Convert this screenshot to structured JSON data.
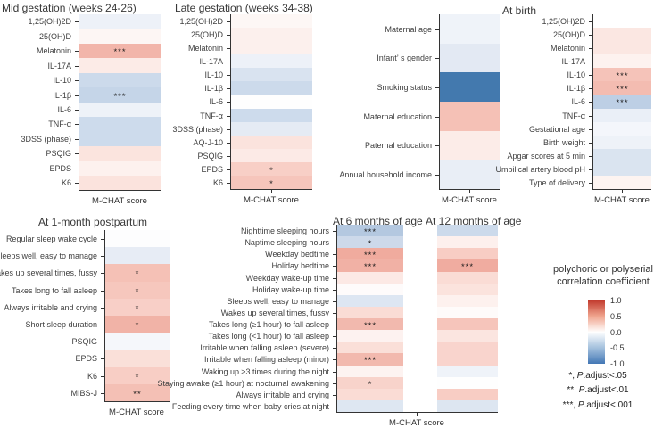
{
  "figure": {
    "xlabel": "M-CHAT score"
  },
  "chart_data": [
    {
      "id": "mid-gestation",
      "type": "heatmap",
      "title": "Mid gestation (weeks 24-26)",
      "xlabel": "M-CHAT score",
      "x_categories": [
        "M-CHAT score"
      ],
      "rows": [
        {
          "label": "1,25(OH)2D",
          "value": -0.06,
          "sig": "",
          "color": "#edf1f8"
        },
        {
          "label": "25(OH)D",
          "value": 0.03,
          "sig": "",
          "color": "#fdf6f4"
        },
        {
          "label": "Melatonin",
          "value": 0.38,
          "sig": "***",
          "color": "#f2b5aa"
        },
        {
          "label": "IL-17A",
          "value": 0.1,
          "sig": "",
          "color": "#fcebe7"
        },
        {
          "label": "IL-10",
          "value": -0.22,
          "sig": "",
          "color": "#ccdaeb"
        },
        {
          "label": "IL-1β",
          "value": -0.27,
          "sig": "***",
          "color": "#c5d5e8"
        },
        {
          "label": "IL-6",
          "value": -0.06,
          "sig": "",
          "color": "#eef2f8"
        },
        {
          "label": "TNF-α",
          "value": -0.22,
          "sig": "",
          "color": "#cddbec"
        },
        {
          "label": "3DSS (phase)",
          "value": -0.22,
          "sig": "",
          "color": "#cddbec"
        },
        {
          "label": "PSQIG",
          "value": 0.13,
          "sig": "",
          "color": "#fbe4de"
        },
        {
          "label": "EPDS",
          "value": 0.07,
          "sig": "",
          "color": "#fdf1ee"
        },
        {
          "label": "K6",
          "value": 0.13,
          "sig": "",
          "color": "#fbe3dd"
        }
      ]
    },
    {
      "id": "late-gestation",
      "type": "heatmap",
      "title": "Late gestation (weeks 34-38)",
      "xlabel": "M-CHAT score",
      "x_categories": [
        "M-CHAT score"
      ],
      "rows": [
        {
          "label": "1,25(OH)2D",
          "value": 0.03,
          "sig": "",
          "color": "#fdf7f5"
        },
        {
          "label": "25(OH)D",
          "value": 0.07,
          "sig": "",
          "color": "#fcf0ed"
        },
        {
          "label": "Melatonin",
          "value": 0.07,
          "sig": "",
          "color": "#fcf0ed"
        },
        {
          "label": "IL-17A",
          "value": -0.06,
          "sig": "",
          "color": "#edf1f8"
        },
        {
          "label": "IL-10",
          "value": -0.17,
          "sig": "",
          "color": "#d9e3f0"
        },
        {
          "label": "IL-1β",
          "value": -0.22,
          "sig": "",
          "color": "#ccdaeb"
        },
        {
          "label": "IL-6",
          "value": 0.0,
          "sig": "",
          "color": "#fefefe"
        },
        {
          "label": "TNF-α",
          "value": -0.22,
          "sig": "",
          "color": "#cddbec"
        },
        {
          "label": "3DSS (phase)",
          "value": -0.12,
          "sig": "",
          "color": "#e5ebf4"
        },
        {
          "label": "AQ-J-10",
          "value": 0.13,
          "sig": "",
          "color": "#fbe3dd"
        },
        {
          "label": "PSQIG",
          "value": 0.1,
          "sig": "",
          "color": "#fceae6"
        },
        {
          "label": "EPDS",
          "value": 0.25,
          "sig": "*",
          "color": "#f8cfc6"
        },
        {
          "label": "K6",
          "value": 0.3,
          "sig": "*",
          "color": "#f6c5bb"
        }
      ]
    },
    {
      "id": "demographics",
      "type": "heatmap",
      "title": "",
      "xlabel": "M-CHAT score",
      "x_categories": [
        "M-CHAT score"
      ],
      "rows": [
        {
          "label": "Maternal age",
          "value": -0.05,
          "sig": "",
          "color": "#eff3f9"
        },
        {
          "label": "Infant’ s gender",
          "value": -0.13,
          "sig": "",
          "color": "#e3e9f3"
        },
        {
          "label": "Smoking status",
          "value": -0.8,
          "sig": "",
          "color": "#4379ae"
        },
        {
          "label": "Maternal education",
          "value": 0.32,
          "sig": "",
          "color": "#f5c1b6"
        },
        {
          "label": "Paternal education",
          "value": 0.09,
          "sig": "",
          "color": "#fcece8"
        },
        {
          "label": "Annual household income",
          "value": -0.1,
          "sig": "",
          "color": "#e9eef6"
        }
      ]
    },
    {
      "id": "at-birth",
      "type": "heatmap",
      "title": "At birth",
      "xlabel": "M-CHAT score",
      "x_categories": [
        "M-CHAT score"
      ],
      "rows": [
        {
          "label": "1,25(OH)2D",
          "value": 0.0,
          "sig": "",
          "color": "#ffffff"
        },
        {
          "label": "25(OH)D",
          "value": 0.11,
          "sig": "",
          "color": "#fbe7e2"
        },
        {
          "label": "Melatonin",
          "value": 0.11,
          "sig": "",
          "color": "#fbe7e2"
        },
        {
          "label": "IL-17A",
          "value": 0.06,
          "sig": "",
          "color": "#fdf2ef"
        },
        {
          "label": "IL-10",
          "value": 0.31,
          "sig": "***",
          "color": "#f5c3b9"
        },
        {
          "label": "IL-1β",
          "value": 0.34,
          "sig": "***",
          "color": "#f3bcb1"
        },
        {
          "label": "IL-6",
          "value": -0.33,
          "sig": "***",
          "color": "#bdcfe5"
        },
        {
          "label": "TNF-α",
          "value": -0.09,
          "sig": "",
          "color": "#eaeff7"
        },
        {
          "label": "Gestational age",
          "value": -0.04,
          "sig": "",
          "color": "#f4f6fb"
        },
        {
          "label": "Birth weight",
          "value": -0.06,
          "sig": "",
          "color": "#eef2f8"
        },
        {
          "label": "Apgar scores at 5 min",
          "value": -0.17,
          "sig": "",
          "color": "#dae4f0"
        },
        {
          "label": "Umbilical artery blood pH",
          "value": -0.17,
          "sig": "",
          "color": "#dae4f0"
        },
        {
          "label": "Type of delivery",
          "value": 0.05,
          "sig": "",
          "color": "#fdf4f1"
        }
      ]
    },
    {
      "id": "one-month-postpartum",
      "type": "heatmap",
      "title": "At 1-month postpartum",
      "xlabel": "M-CHAT score",
      "x_categories": [
        "M-CHAT score"
      ],
      "rows": [
        {
          "label": "Regular sleep wake cycle",
          "value": -0.01,
          "sig": "",
          "color": "#fdfdfe"
        },
        {
          "label": "Sleeps well, easy to manage",
          "value": -0.11,
          "sig": "",
          "color": "#e7ecf5"
        },
        {
          "label": "Wakes up several times, fussy",
          "value": 0.32,
          "sig": "*",
          "color": "#f5c1b6"
        },
        {
          "label": "Takes long to fall asleep",
          "value": 0.29,
          "sig": "*",
          "color": "#f6c7bd"
        },
        {
          "label": "Always irritable and crying",
          "value": 0.25,
          "sig": "*",
          "color": "#f8cfc7"
        },
        {
          "label": "Short sleep duration",
          "value": 0.39,
          "sig": "*",
          "color": "#f1b3a7"
        },
        {
          "label": "PSQIG",
          "value": -0.03,
          "sig": "",
          "color": "#f5f7fb"
        },
        {
          "label": "EPDS",
          "value": 0.16,
          "sig": "",
          "color": "#fae0d9"
        },
        {
          "label": "K6",
          "value": 0.26,
          "sig": "*",
          "color": "#f8cec5"
        },
        {
          "label": "MIBS-J",
          "value": 0.32,
          "sig": "**",
          "color": "#f4c0b5"
        }
      ]
    },
    {
      "id": "six-months",
      "type": "heatmap",
      "title": "At 6 months of age",
      "xlabel": "M-CHAT score",
      "x_categories": [
        "M-CHAT score"
      ],
      "rows": [
        {
          "label": "Nighttime sleeping hours",
          "value": -0.4,
          "sig": "***",
          "color": "#b4c8e0"
        },
        {
          "label": "Naptime sleeping hours",
          "value": -0.25,
          "sig": "*",
          "color": "#cdd9ea"
        },
        {
          "label": "Weekday bedtime",
          "value": 0.44,
          "sig": "***",
          "color": "#f0ab9e"
        },
        {
          "label": "Holiday bedtime",
          "value": 0.41,
          "sig": "***",
          "color": "#f1b1a5"
        },
        {
          "label": "Weekday wake-up time",
          "value": 0.1,
          "sig": "",
          "color": "#fce9e5"
        },
        {
          "label": "Holiday wake-up time",
          "value": 0.01,
          "sig": "",
          "color": "#fefbfb"
        },
        {
          "label": "Sleeps well, easy to manage",
          "value": -0.15,
          "sig": "",
          "color": "#dde6f2"
        },
        {
          "label": "Wakes up several times, fussy",
          "value": 0.17,
          "sig": "",
          "color": "#fadcd5"
        },
        {
          "label": "Takes long (≥1 hour) to fall asleep",
          "value": 0.37,
          "sig": "***",
          "color": "#f2b9ae"
        },
        {
          "label": "Takes long (<1 hour) to fall asleep",
          "value": 0.06,
          "sig": "",
          "color": "#fdf2f0"
        },
        {
          "label": "Irritable when falling asleep (severe)",
          "value": 0.16,
          "sig": "",
          "color": "#fadfd8"
        },
        {
          "label": "Irritable when falling asleep (minor)",
          "value": 0.37,
          "sig": "***",
          "color": "#f2b9ae"
        },
        {
          "label": "Waking up ≥3 times during the night",
          "value": 0.05,
          "sig": "",
          "color": "#fdf3f1"
        },
        {
          "label": "Staying awake (≥1 hour) at nocturnal awakening",
          "value": 0.23,
          "sig": "*",
          "color": "#f8d3cb"
        },
        {
          "label": "Always irritable and crying",
          "value": 0.17,
          "sig": "",
          "color": "#fadcd5"
        },
        {
          "label": "Feeding every time when baby cries at night",
          "value": -0.15,
          "sig": "",
          "color": "#dee7f2"
        }
      ]
    },
    {
      "id": "twelve-months",
      "type": "heatmap",
      "title": "At 12 months of age",
      "xlabel": "M-CHAT score",
      "x_categories": [
        "M-CHAT score"
      ],
      "rows": [
        {
          "label": "Nighttime sleeping hours",
          "value": -0.25,
          "sig": "",
          "color": "#ccdaeb"
        },
        {
          "label": "Naptime sleeping hours",
          "value": 0.07,
          "sig": "",
          "color": "#fdf0ed"
        },
        {
          "label": "Weekday bedtime",
          "value": 0.26,
          "sig": "",
          "color": "#f8cdc4"
        },
        {
          "label": "Holiday bedtime",
          "value": 0.43,
          "sig": "***",
          "color": "#f0aca0"
        },
        {
          "label": "Weekday wake-up time",
          "value": 0.17,
          "sig": "",
          "color": "#fadcd5"
        },
        {
          "label": "Holiday wake-up time",
          "value": 0.14,
          "sig": "",
          "color": "#fbe3dd"
        },
        {
          "label": "Sleeps well, easy to manage",
          "value": 0.07,
          "sig": "",
          "color": "#fdf1ee"
        },
        {
          "label": "Wakes up several times, fussy",
          "value": 0.02,
          "sig": "",
          "color": "#fefbfa"
        },
        {
          "label": "Takes long (≥1 hour) to fall asleep",
          "value": 0.29,
          "sig": "",
          "color": "#f6c5bb"
        },
        {
          "label": "Takes long (<1 hour) to fall asleep",
          "value": 0.13,
          "sig": "",
          "color": "#fbe5e0"
        },
        {
          "label": "Irritable when falling asleep (severe)",
          "value": 0.22,
          "sig": "",
          "color": "#f9d4cd"
        },
        {
          "label": "Irritable when falling asleep (minor)",
          "value": 0.22,
          "sig": "",
          "color": "#f9d4cd"
        },
        {
          "label": "Waking up ≥3 times during the night",
          "value": -0.05,
          "sig": "",
          "color": "#eff3f9"
        },
        {
          "label": "Staying awake (≥1 hour) at nocturnal awakening",
          "value": 0.0,
          "sig": "",
          "color": "#fefefe"
        },
        {
          "label": "Always irritable and crying",
          "value": 0.26,
          "sig": "",
          "color": "#f8cdc4"
        },
        {
          "label": "Feeding every time when baby cries at night",
          "value": -0.15,
          "sig": "",
          "color": "#dde6f1"
        }
      ]
    }
  ],
  "legend": {
    "title_line1": "polychoric or polyserial",
    "title_line2": "correlation coefficient",
    "position": "right",
    "scale_min": -1.0,
    "scale_max": 1.0,
    "ticks": [
      "1.0",
      "0.5",
      "0.0",
      "-0.5",
      "-1.0"
    ],
    "gradient_stops": [
      "#c23b2e",
      "#f0a58f",
      "#ffffff",
      "#a3c0dd",
      "#4377b5"
    ],
    "sig_notes": [
      {
        "prefix": "*, ",
        "p": "P",
        "rest": ".adjust<.05"
      },
      {
        "prefix": "**, ",
        "p": "P",
        "rest": ".adjust<.01"
      },
      {
        "prefix": "***, ",
        "p": "P",
        "rest": ".adjust<.001"
      }
    ]
  }
}
